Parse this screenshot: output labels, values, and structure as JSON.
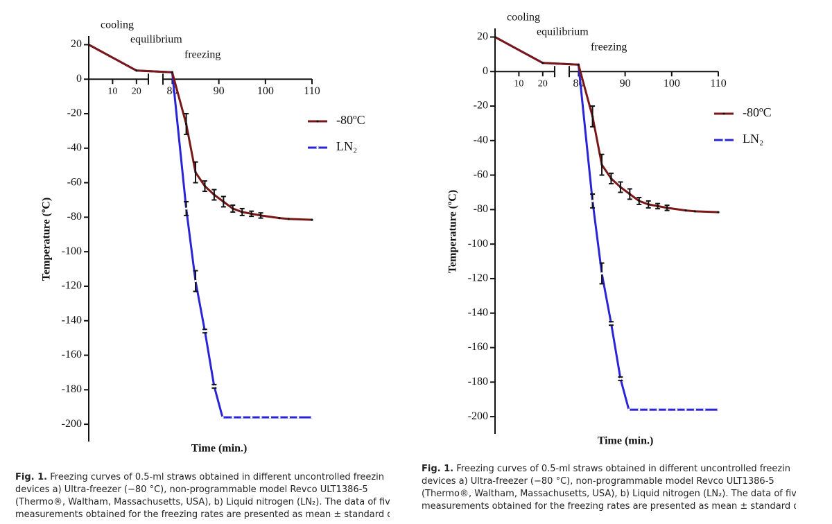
{
  "chart_data": [
    {
      "type": "line",
      "xlabel": "Time (min.)",
      "ylabel": "Temperature (ºC)",
      "annotations": [
        "cooling",
        "equilibrium",
        "freezing"
      ],
      "xlim": [
        0,
        110
      ],
      "xbreak": [
        25,
        78
      ],
      "xticks": [
        10,
        20,
        80,
        90,
        100,
        110
      ],
      "ylim": [
        -210,
        25
      ],
      "yticks": [
        -200,
        -180,
        -160,
        -140,
        -120,
        -100,
        -80,
        -60,
        -40,
        -20,
        0,
        20
      ],
      "legend": "right",
      "series": [
        {
          "name": "LN₂",
          "color": "#2a24d6",
          "x": [
            0,
            20,
            80,
            83,
            85,
            87,
            89,
            90.8,
            93,
            95,
            97,
            99,
            101,
            103,
            105,
            107,
            110
          ],
          "values": [
            20,
            5,
            4,
            -75,
            -117,
            -146,
            -178,
            -196,
            -196,
            -196,
            -196,
            -196,
            -196,
            -196,
            -196,
            -196,
            -196
          ],
          "errors": [
            null,
            null,
            null,
            4,
            6,
            1,
            1,
            null,
            null,
            null,
            null,
            null,
            null,
            null,
            null,
            null,
            null
          ]
        },
        {
          "name": "-80ºC",
          "color": "#7a1616",
          "x": [
            0,
            20,
            80,
            83,
            85,
            87,
            89,
            91,
            93,
            95,
            97,
            99,
            103,
            105,
            110
          ],
          "values": [
            20,
            5,
            4,
            -26,
            -54,
            -62,
            -67,
            -71,
            -75,
            -77,
            -78,
            -79,
            -80.5,
            -81,
            -81.5
          ],
          "errors": [
            null,
            null,
            null,
            6,
            6,
            3,
            3,
            3,
            2,
            2,
            1.5,
            1.5,
            null,
            null,
            null
          ]
        }
      ]
    },
    {
      "type": "line",
      "xlabel": "Time (min.)",
      "ylabel": "Temperature (ºC)",
      "annotations": [
        "cooling",
        "equilibrium",
        "freezing"
      ],
      "xlim": [
        0,
        110
      ],
      "xbreak": [
        25,
        78
      ],
      "xticks": [
        10,
        20,
        80,
        90,
        100,
        110
      ],
      "ylim": [
        -210,
        25
      ],
      "yticks": [
        -200,
        -180,
        -160,
        -140,
        -120,
        -100,
        -80,
        -60,
        -40,
        -20,
        0,
        20
      ],
      "legend": "right",
      "series": [
        {
          "name": "LN₂",
          "color": "#2a24d6",
          "x": [
            0,
            20,
            80,
            83,
            85,
            87,
            89,
            90.8,
            93,
            95,
            97,
            99,
            101,
            103,
            105,
            107,
            110
          ],
          "values": [
            20,
            5,
            4,
            -75,
            -117,
            -146,
            -178,
            -196,
            -196,
            -196,
            -196,
            -196,
            -196,
            -196,
            -196,
            -196,
            -196
          ],
          "errors": [
            null,
            null,
            null,
            4,
            6,
            1,
            1,
            null,
            null,
            null,
            null,
            null,
            null,
            null,
            null,
            null,
            null
          ]
        },
        {
          "name": "-80ºC",
          "color": "#7a1616",
          "x": [
            0,
            20,
            80,
            83,
            85,
            87,
            89,
            91,
            93,
            95,
            97,
            99,
            103,
            105,
            110
          ],
          "values": [
            20,
            5,
            4,
            -26,
            -54,
            -62,
            -67,
            -71,
            -75,
            -77,
            -78,
            -79,
            -80.5,
            -81,
            -81.5
          ],
          "errors": [
            null,
            null,
            null,
            6,
            6,
            3,
            3,
            3,
            2,
            2,
            1.5,
            1.5,
            null,
            null,
            null
          ]
        }
      ]
    }
  ],
  "captions": [
    {
      "label": "Fig. 1.",
      "lines": [
        "Freezing curves of 0.5-ml straws obtained in different uncontrolled freezin",
        "devices a) Ultra-freezer (−80 °C), non-programmable model Revco ULT1386-5",
        "(Thermo®, Waltham, Massachusetts, USA), b) Liquid nitrogen (LN₂). The data of fiv",
        "measurements obtained for the freezing rates are presented as mean ± standard de"
      ]
    },
    {
      "label": "Fig. 1.",
      "lines": [
        "Freezing curves of 0.5-ml straws obtained in different uncontrolled freezin",
        "devices a) Ultra-freezer (−80 °C), non-programmable model Revco ULT1386-5",
        "(Thermo®, Waltham, Massachusetts, USA), b) Liquid nitrogen (LN₂). The data of fiv",
        "measurements obtained for the freezing rates are presented as mean ± standard de"
      ]
    }
  ]
}
